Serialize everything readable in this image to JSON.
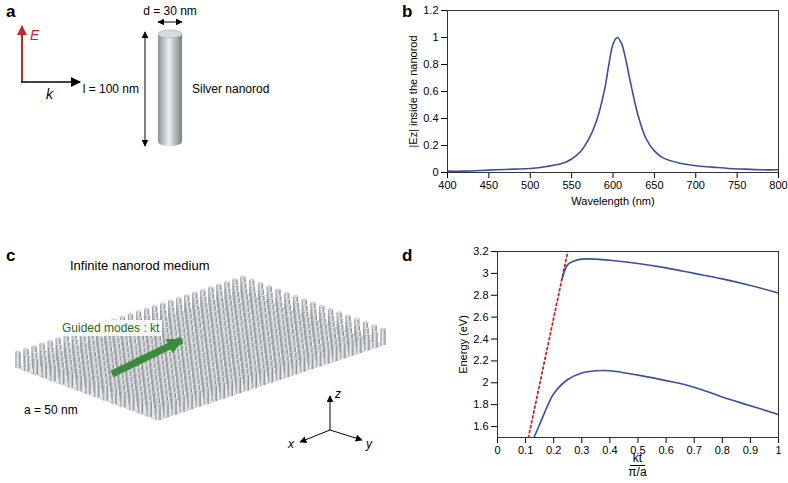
{
  "panels": {
    "a": {
      "label": "a",
      "E": "E",
      "k": "k",
      "d": "d = 30 nm",
      "l": "l = 100 nm",
      "name": "Silver nanorod"
    },
    "c": {
      "label": "c",
      "title": "Infinite nanorod medium",
      "guided": "Guided modes : kt",
      "a": "a = 50 nm",
      "axes": [
        "x",
        "y",
        "z"
      ]
    }
  },
  "chart_data": [
    {
      "panel": "b",
      "type": "line",
      "x_label": "Wavelength (nm)",
      "y_label": "|Ez| inside the nanorod",
      "x": [
        400,
        420,
        440,
        460,
        480,
        500,
        520,
        540,
        550,
        560,
        570,
        580,
        590,
        595,
        600,
        605,
        610,
        615,
        620,
        630,
        640,
        650,
        660,
        680,
        700,
        720,
        740,
        760,
        780,
        800
      ],
      "series": [
        {
          "color": "#3b4ea3",
          "line_style": "solid",
          "values": [
            0.01,
            0.01,
            0.015,
            0.02,
            0.025,
            0.03,
            0.045,
            0.07,
            0.1,
            0.15,
            0.24,
            0.38,
            0.62,
            0.8,
            0.95,
            1.0,
            0.96,
            0.85,
            0.7,
            0.43,
            0.25,
            0.16,
            0.11,
            0.07,
            0.05,
            0.04,
            0.03,
            0.025,
            0.02,
            0.02
          ]
        }
      ],
      "xlim": [
        400,
        800
      ],
      "xticks": [
        400,
        450,
        500,
        550,
        600,
        650,
        700,
        750,
        800
      ],
      "ylim": [
        0,
        1.2
      ],
      "yticks": [
        0,
        0.2,
        0.4,
        0.6,
        0.8,
        1,
        1.2
      ]
    },
    {
      "panel": "d",
      "type": "line",
      "x_label": {
        "numerator": "kt",
        "denominator": "π/a"
      },
      "y_label": "Energy (eV)",
      "series": [
        {
          "color": "#cc2222",
          "line_style": "dotted",
          "x": [
            0.11,
            0.25
          ],
          "values": [
            1.5,
            3.2
          ]
        },
        {
          "color": "#3b4ea3",
          "line_style": "solid",
          "x": [
            0.23,
            0.24,
            0.25,
            0.27,
            0.3,
            0.35,
            0.4,
            0.5,
            0.6,
            0.7,
            0.8,
            0.9,
            1.0
          ],
          "values": [
            2.95,
            3.03,
            3.08,
            3.11,
            3.13,
            3.13,
            3.12,
            3.09,
            3.05,
            3.0,
            2.95,
            2.89,
            2.82
          ]
        },
        {
          "color": "#3b4ea3",
          "line_style": "solid",
          "x": [
            0.13,
            0.15,
            0.18,
            0.2,
            0.25,
            0.3,
            0.35,
            0.4,
            0.5,
            0.6,
            0.7,
            0.8,
            0.9,
            1.0
          ],
          "values": [
            1.5,
            1.62,
            1.8,
            1.9,
            2.03,
            2.09,
            2.11,
            2.11,
            2.07,
            2.02,
            1.96,
            1.87,
            1.79,
            1.71
          ]
        }
      ],
      "xlim": [
        0,
        1
      ],
      "xticks": [
        0,
        0.1,
        0.2,
        0.3,
        0.4,
        0.5,
        0.6,
        0.7,
        0.8,
        0.9,
        1
      ],
      "ylim": [
        1.5,
        3.2
      ],
      "yticks": [
        1.6,
        1.8,
        2,
        2.2,
        2.4,
        2.6,
        2.8,
        3,
        3.2
      ]
    }
  ]
}
